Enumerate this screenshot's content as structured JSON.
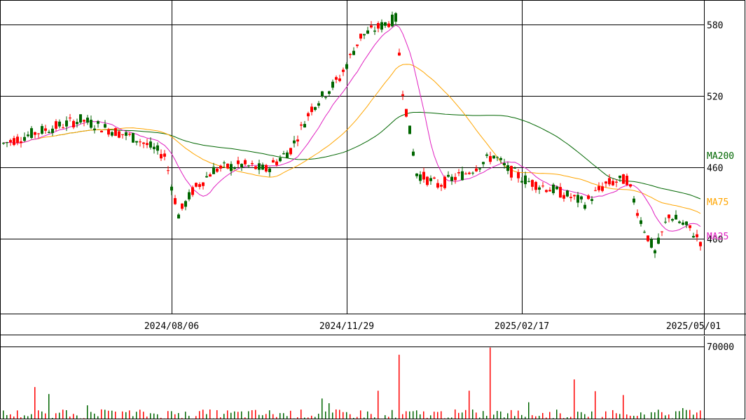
{
  "chart_data": [
    {
      "type": "candlestick",
      "y_axis_ticks": [
        "580",
        "520",
        "460",
        "400"
      ],
      "y_ticks_values": [
        580,
        520,
        460,
        400
      ],
      "ylim": [
        340,
        600
      ],
      "x_axis_ticks": [
        "2024/08/06",
        "2024/11/29",
        "2025/02/17",
        "2025/05/01"
      ],
      "x_ticks_index": [
        40,
        90,
        140,
        190
      ],
      "grid": true,
      "moving_averages": [
        {
          "name": "MA200",
          "color": "#006600"
        },
        {
          "name": "MA75",
          "color": "#ffa500"
        },
        {
          "name": "MA25",
          "color": "#e020c0"
        }
      ]
    },
    {
      "type": "bar",
      "y_axis_ticks": [
        "70000"
      ],
      "y_ticks_values": [
        70000
      ],
      "ylim": [
        0,
        76000
      ],
      "grid": true
    }
  ],
  "colors": {
    "up": "#006600",
    "down": "#ff0000",
    "grid": "#000000",
    "background": "#ffffff"
  }
}
